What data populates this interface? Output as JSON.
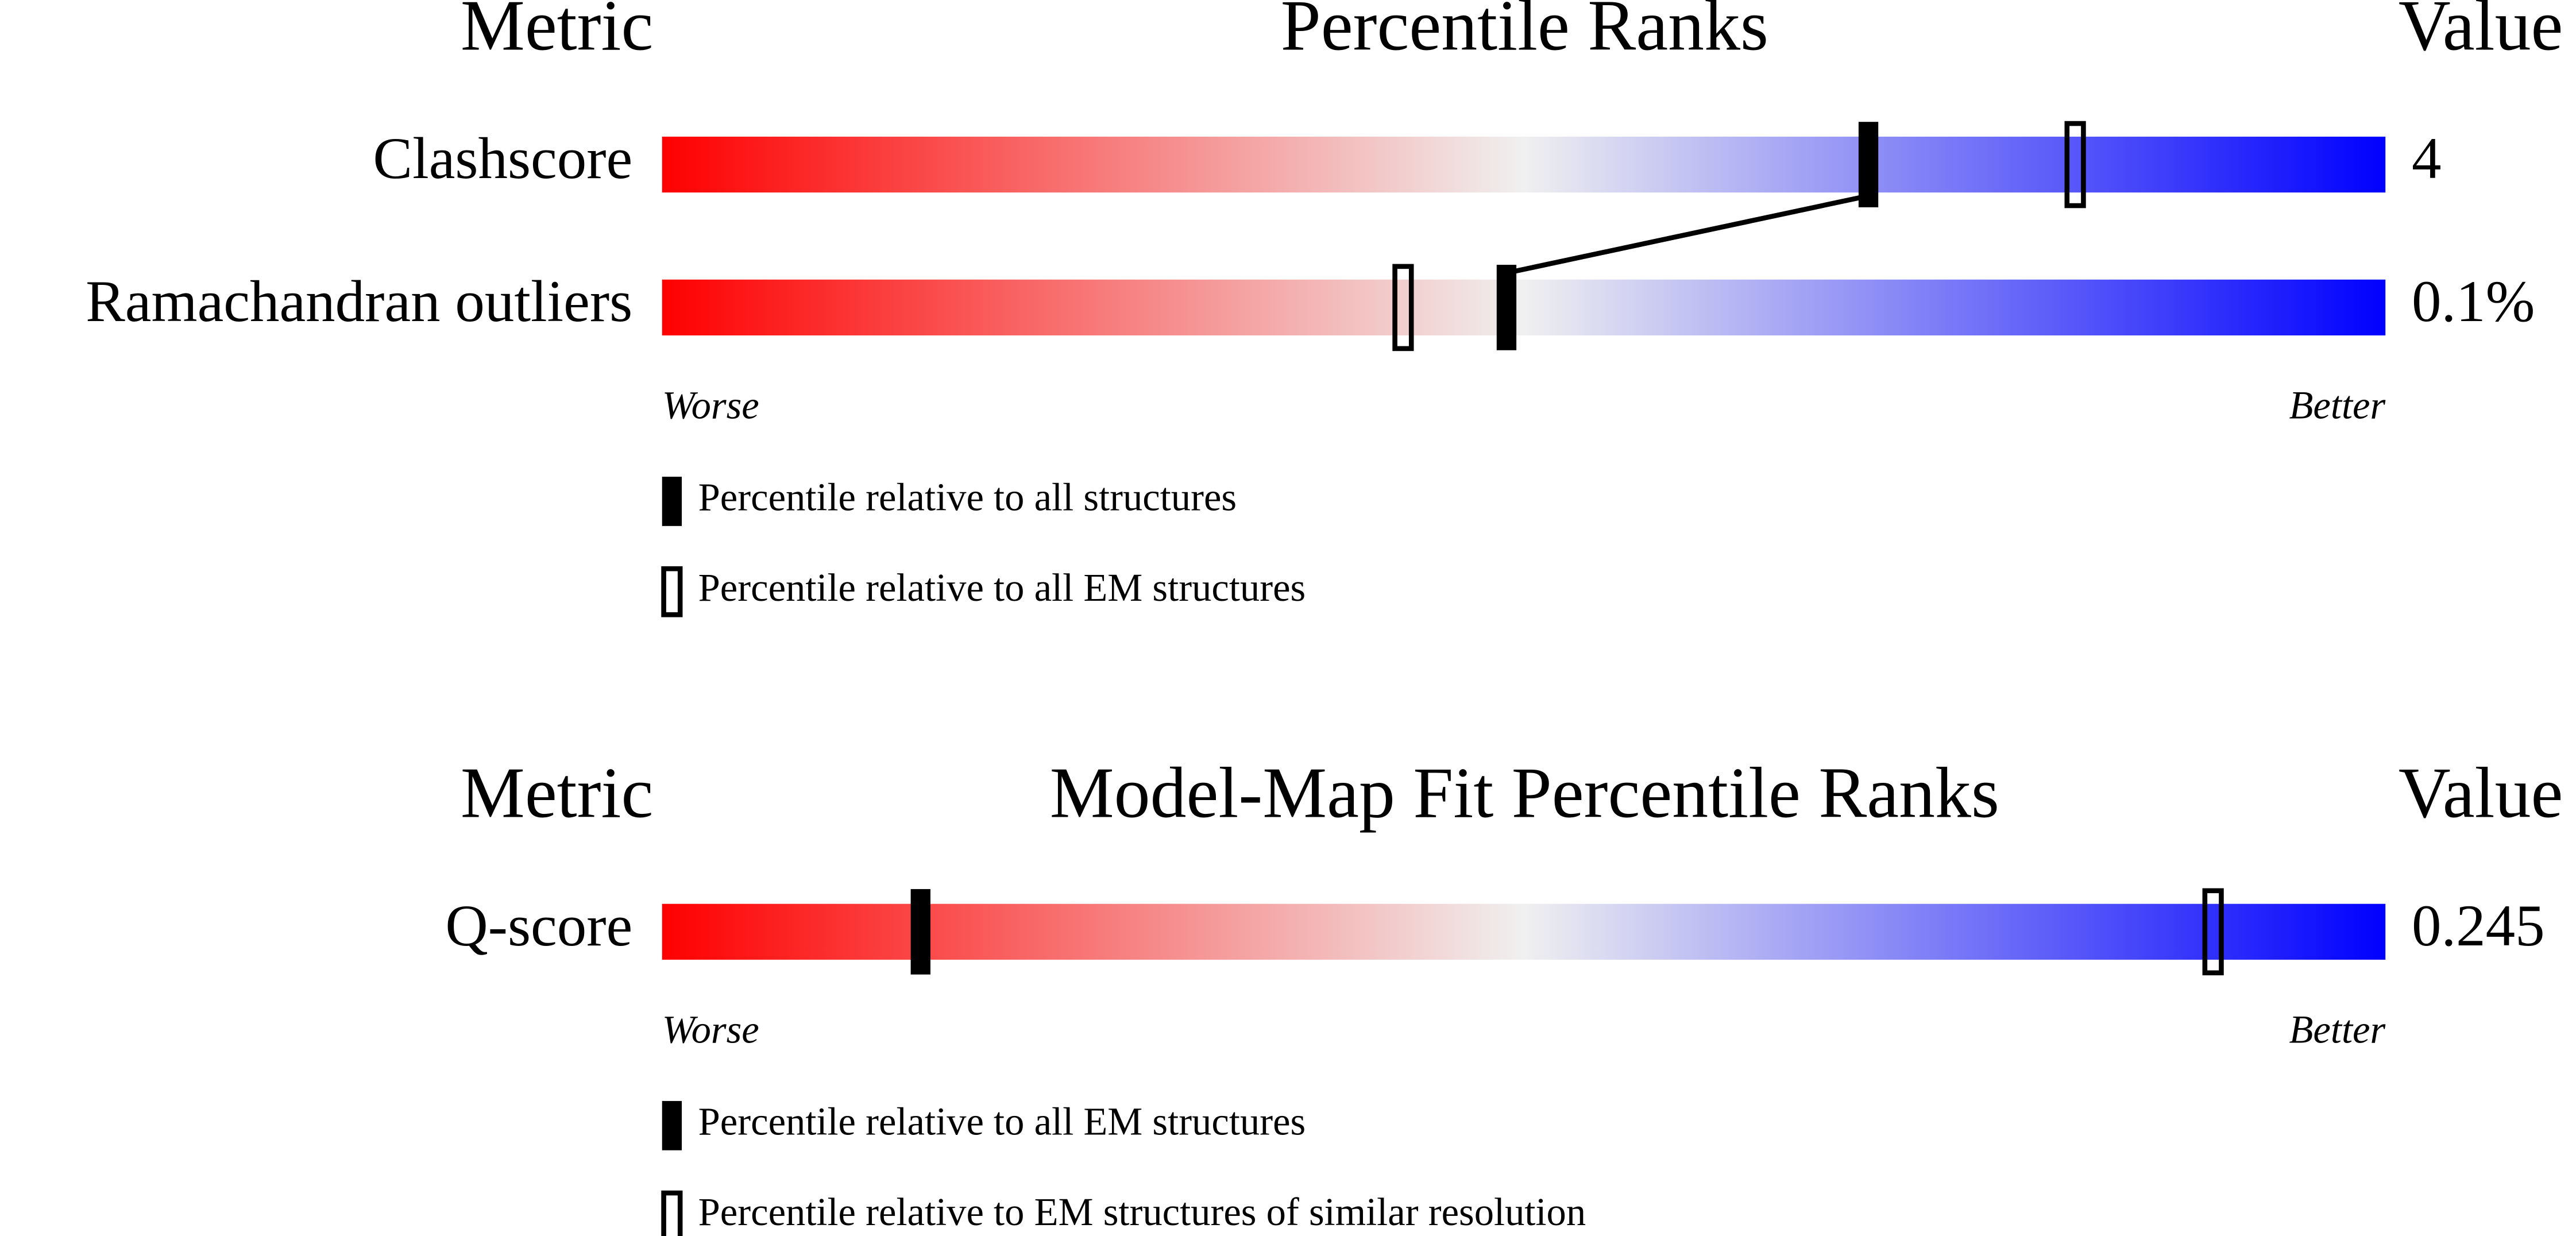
{
  "chart_data": [
    {
      "type": "percentile-slider",
      "header": {
        "metric": "Metric",
        "title": "Percentile Ranks",
        "value": "Value"
      },
      "categories": [
        "Clashscore",
        "Ramachandran outliers"
      ],
      "value_texts": [
        "4",
        "0.1%"
      ],
      "xlim": [
        0,
        100
      ],
      "series": [
        {
          "name": "Percentile relative to all structures",
          "style": "filled",
          "color": "#000000",
          "values": [
            70,
            49
          ]
        },
        {
          "name": "Percentile relative to all EM structures",
          "style": "open",
          "color": "#000000",
          "values": [
            82,
            43
          ]
        }
      ],
      "connect": true,
      "low_label": "Worse",
      "high_label": "Better",
      "gradient": [
        "#ff0000",
        "#f0f0f0",
        "#0000ff"
      ]
    },
    {
      "type": "percentile-slider",
      "header": {
        "metric": "Metric",
        "title": "Model-Map Fit Percentile Ranks",
        "value": "Value"
      },
      "categories": [
        "Q-score"
      ],
      "value_texts": [
        "0.245"
      ],
      "xlim": [
        0,
        100
      ],
      "series": [
        {
          "name": "Percentile relative to all EM structures",
          "style": "filled",
          "color": "#000000",
          "values": [
            15
          ]
        },
        {
          "name": "Percentile relative to EM structures of similar resolution",
          "style": "open",
          "color": "#000000",
          "values": [
            90
          ]
        }
      ],
      "connect": false,
      "low_label": "Worse",
      "high_label": "Better",
      "gradient": [
        "#ff0000",
        "#f0f0f0",
        "#0000ff"
      ]
    }
  ]
}
